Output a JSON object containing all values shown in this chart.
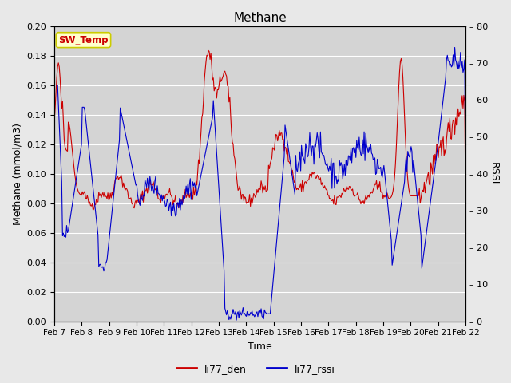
{
  "title": "Methane",
  "xlabel": "Time",
  "ylabel_left": "Methane (mmol/m3)",
  "ylabel_right": "RSSI",
  "ylim_left": [
    0.0,
    0.2
  ],
  "ylim_right": [
    0,
    80
  ],
  "yticks_left": [
    0.0,
    0.02,
    0.04,
    0.06,
    0.08,
    0.1,
    0.12,
    0.14,
    0.16,
    0.18,
    0.2
  ],
  "yticks_right": [
    0,
    10,
    20,
    30,
    40,
    50,
    60,
    70,
    80
  ],
  "yticks_right_labels": [
    "0",
    "10",
    "20",
    "30",
    "40",
    "50",
    "60",
    "70",
    "80"
  ],
  "xtick_labels": [
    "Feb 7",
    "Feb 8",
    "Feb 9",
    "Feb 10",
    "Feb 11",
    "Feb 12",
    "Feb 13",
    "Feb 14",
    "Feb 15",
    "Feb 16",
    "Feb 17",
    "Feb 18",
    "Feb 19",
    "Feb 20",
    "Feb 21",
    "Feb 22"
  ],
  "line1_color": "#cc0000",
  "line2_color": "#0000cc",
  "line1_label": "li77_den",
  "line2_label": "li77_rssi",
  "annotation_text": "SW_Temp",
  "annotation_color": "#cc0000",
  "annotation_bg": "#ffffcc",
  "annotation_border": "#cccc00",
  "fig_bg_color": "#e8e8e8",
  "plot_bg_color": "#d4d4d4",
  "grid_color": "#ffffff",
  "title_fontsize": 11,
  "label_fontsize": 9,
  "tick_fontsize": 8
}
